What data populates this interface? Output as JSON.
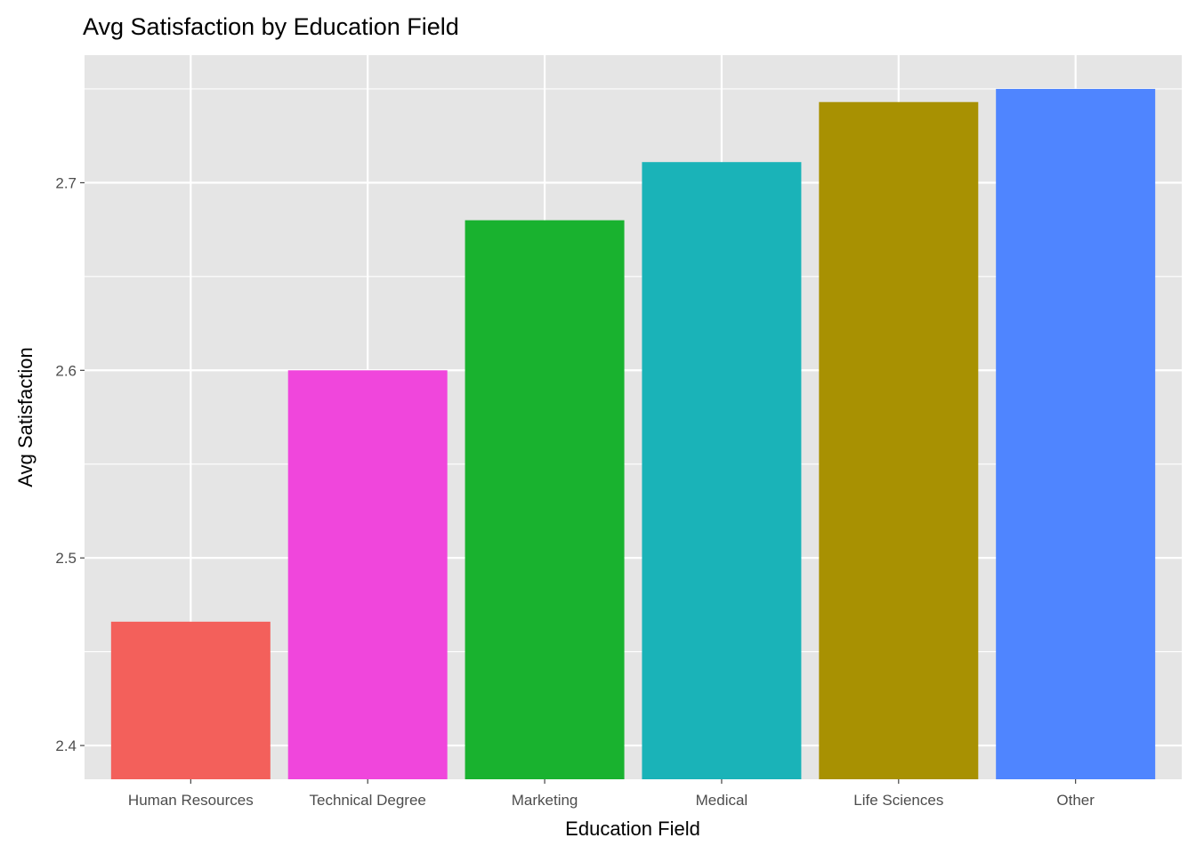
{
  "chart_data": {
    "type": "bar",
    "title": "Avg Satisfaction by Education Field",
    "xlabel": "Education Field",
    "ylabel": "Avg Satisfaction",
    "categories": [
      "Human Resources",
      "Technical Degree",
      "Marketing",
      "Medical",
      "Life Sciences",
      "Other"
    ],
    "values": [
      2.466,
      2.6,
      2.68,
      2.711,
      2.743,
      2.75
    ],
    "colors": [
      "#F8766D",
      "#F564E3",
      "#00BA38",
      "#00BFC4",
      "#B79F00",
      "#619CFF"
    ],
    "bar_colors_rendered": [
      "#F3605B",
      "#F046DC",
      "#19B22F",
      "#1AB3B8",
      "#A89102",
      "#4F85FF"
    ],
    "ylim": [
      2.382,
      2.768
    ],
    "yticks": [
      2.4,
      2.5,
      2.6,
      2.7
    ],
    "ytick_labels": [
      "2.4",
      "2.5",
      "2.6",
      "2.7"
    ],
    "grid": true,
    "legend": "none",
    "panel_background": "#E5E5E5"
  }
}
